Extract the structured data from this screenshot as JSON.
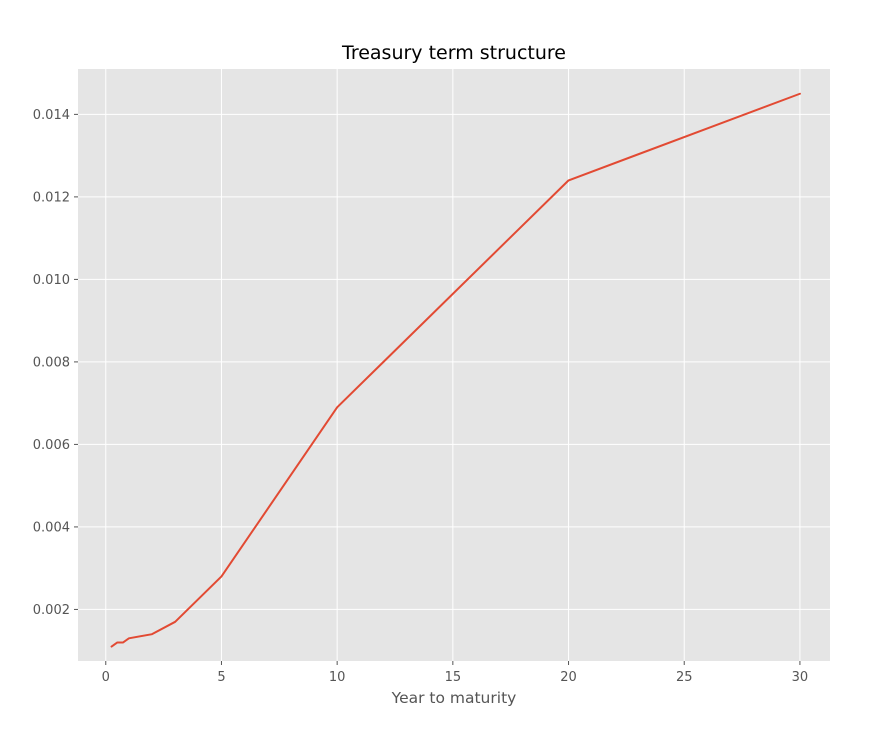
{
  "chart_data": {
    "type": "line",
    "title": "Treasury term structure",
    "xlabel": "Year to maturity",
    "ylabel": "",
    "xlim": [
      -1.2,
      31.3
    ],
    "ylim": [
      0.00075,
      0.0151
    ],
    "xticks": [
      0,
      5,
      10,
      15,
      20,
      25,
      30
    ],
    "xtick_labels": [
      "0",
      "5",
      "10",
      "15",
      "20",
      "25",
      "30"
    ],
    "yticks": [
      0.002,
      0.004,
      0.006,
      0.008,
      0.01,
      0.012,
      0.014
    ],
    "ytick_labels": [
      "0.002",
      "0.004",
      "0.006",
      "0.008",
      "0.010",
      "0.012",
      "0.014"
    ],
    "grid": true,
    "series": [
      {
        "color": "#e24a33",
        "x": [
          0.25,
          0.5,
          0.75,
          1,
          2,
          3,
          5,
          10,
          20,
          30
        ],
        "y": [
          0.0011,
          0.0012,
          0.0012,
          0.0013,
          0.0014,
          0.0017,
          0.0028,
          0.0069,
          0.0124,
          0.0145
        ]
      }
    ]
  }
}
